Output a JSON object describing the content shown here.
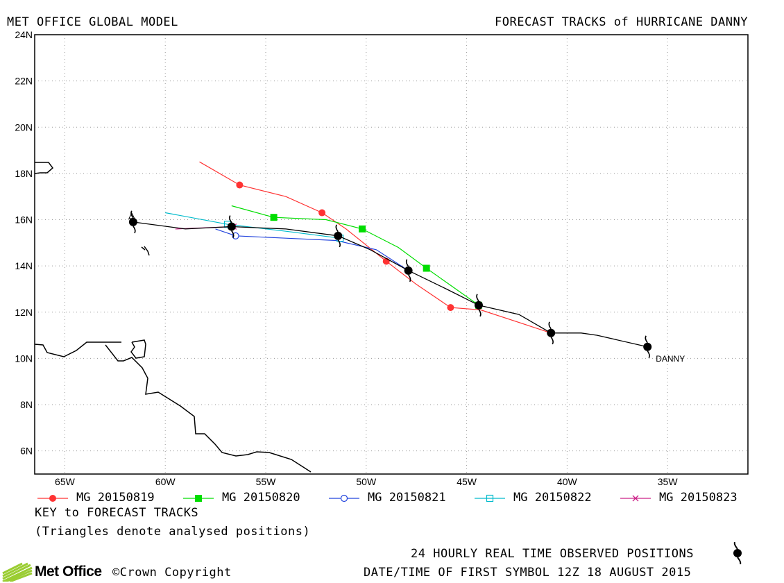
{
  "header": {
    "left_title": "MET OFFICE GLOBAL MODEL",
    "right_title": "FORECAST TRACKS of HURRICANE DANNY"
  },
  "footer": {
    "key_title": "KEY to FORECAST TRACKS",
    "key_note": "(Triangles denote analysed positions)",
    "observed_label": "24 HOURLY REAL TIME OBSERVED POSITIONS",
    "date_label": "DATE/TIME OF FIRST SYMBOL 12Z 18 AUGUST 2015",
    "logo_text": "Met Office",
    "copyright": "©Crown Copyright"
  },
  "chart_data": {
    "type": "line",
    "title": "FORECAST TRACKS of HURRICANE DANNY",
    "x_axis": {
      "range": [
        -66.5,
        -31
      ],
      "ticks": [
        -65,
        -60,
        -55,
        -50,
        -45,
        -40,
        -35
      ],
      "tick_labels": [
        "65W",
        "60W",
        "55W",
        "50W",
        "45W",
        "40W",
        "35W"
      ]
    },
    "y_axis": {
      "range": [
        5,
        24
      ],
      "ticks": [
        6,
        8,
        10,
        12,
        14,
        16,
        18,
        20,
        22,
        24
      ],
      "tick_labels": [
        "6N",
        "8N",
        "10N",
        "12N",
        "14N",
        "16N",
        "18N",
        "20N",
        "22N",
        "24N"
      ]
    },
    "grid": true,
    "storm_label": {
      "text": "DANNY",
      "lon": -36.0,
      "lat": 10.5
    },
    "observed": {
      "points": [
        [
          -36.0,
          10.5
        ],
        [
          -40.8,
          11.1
        ],
        [
          -44.4,
          12.3
        ],
        [
          -47.9,
          13.8
        ],
        [
          -51.4,
          15.3
        ],
        [
          -56.7,
          15.7
        ],
        [
          -61.6,
          15.9
        ]
      ],
      "line": [
        [
          -36.0,
          10.5
        ],
        [
          -38.5,
          11.0
        ],
        [
          -39.3,
          11.1
        ],
        [
          -40.8,
          11.1
        ],
        [
          -42.4,
          11.9
        ],
        [
          -44.4,
          12.3
        ],
        [
          -46.0,
          13.0
        ],
        [
          -47.9,
          13.8
        ],
        [
          -49.8,
          14.7
        ],
        [
          -51.4,
          15.3
        ],
        [
          -54.0,
          15.6
        ],
        [
          -56.7,
          15.7
        ],
        [
          -59.0,
          15.6
        ],
        [
          -61.6,
          15.9
        ]
      ]
    },
    "series": [
      {
        "name": "MG 20150819",
        "color": "#ff3333",
        "marker": "circle-filled",
        "points": [
          [
            -40.8,
            11.1
          ],
          [
            -45.8,
            12.2
          ],
          [
            -49.0,
            14.2
          ],
          [
            -52.2,
            16.3
          ],
          [
            -56.3,
            17.5
          ]
        ],
        "line": [
          [
            -40.8,
            11.1
          ],
          [
            -44.3,
            12.1
          ],
          [
            -45.8,
            12.2
          ],
          [
            -47.5,
            13.2
          ],
          [
            -49.0,
            14.2
          ],
          [
            -51.0,
            15.6
          ],
          [
            -52.2,
            16.3
          ],
          [
            -54.0,
            17.0
          ],
          [
            -56.3,
            17.5
          ],
          [
            -58.3,
            18.5
          ]
        ]
      },
      {
        "name": "MG 20150820",
        "color": "#00dd00",
        "marker": "square-filled",
        "points": [
          [
            -44.4,
            12.3
          ],
          [
            -47.0,
            13.9
          ],
          [
            -50.2,
            15.6
          ],
          [
            -54.6,
            16.1
          ]
        ],
        "line": [
          [
            -44.4,
            12.3
          ],
          [
            -47.0,
            13.9
          ],
          [
            -48.4,
            14.8
          ],
          [
            -50.2,
            15.6
          ],
          [
            -52.0,
            16.0
          ],
          [
            -54.6,
            16.1
          ],
          [
            -56.7,
            16.6
          ]
        ]
      },
      {
        "name": "MG 20150821",
        "color": "#2244dd",
        "marker": "circle-open",
        "points": [
          [
            -47.9,
            13.8
          ],
          [
            -56.5,
            15.3
          ]
        ],
        "line": [
          [
            -47.9,
            13.8
          ],
          [
            -49.5,
            14.7
          ],
          [
            -51.5,
            15.1
          ],
          [
            -54.0,
            15.2
          ],
          [
            -56.5,
            15.3
          ],
          [
            -57.5,
            15.6
          ]
        ]
      },
      {
        "name": "MG 20150822",
        "color": "#00bbcc",
        "marker": "square-open",
        "points": [
          [
            -51.3,
            15.2
          ],
          [
            -56.9,
            15.8
          ]
        ],
        "line": [
          [
            -51.3,
            15.2
          ],
          [
            -54.0,
            15.5
          ],
          [
            -56.9,
            15.8
          ],
          [
            -60.0,
            16.3
          ]
        ]
      },
      {
        "name": "MG 20150823",
        "color": "#cc2288",
        "marker": "cross",
        "points": [
          [
            -56.6,
            15.7
          ]
        ],
        "line": [
          [
            -56.6,
            15.7
          ],
          [
            -59.5,
            15.6
          ]
        ]
      }
    ],
    "legend_placement": "bottom"
  }
}
